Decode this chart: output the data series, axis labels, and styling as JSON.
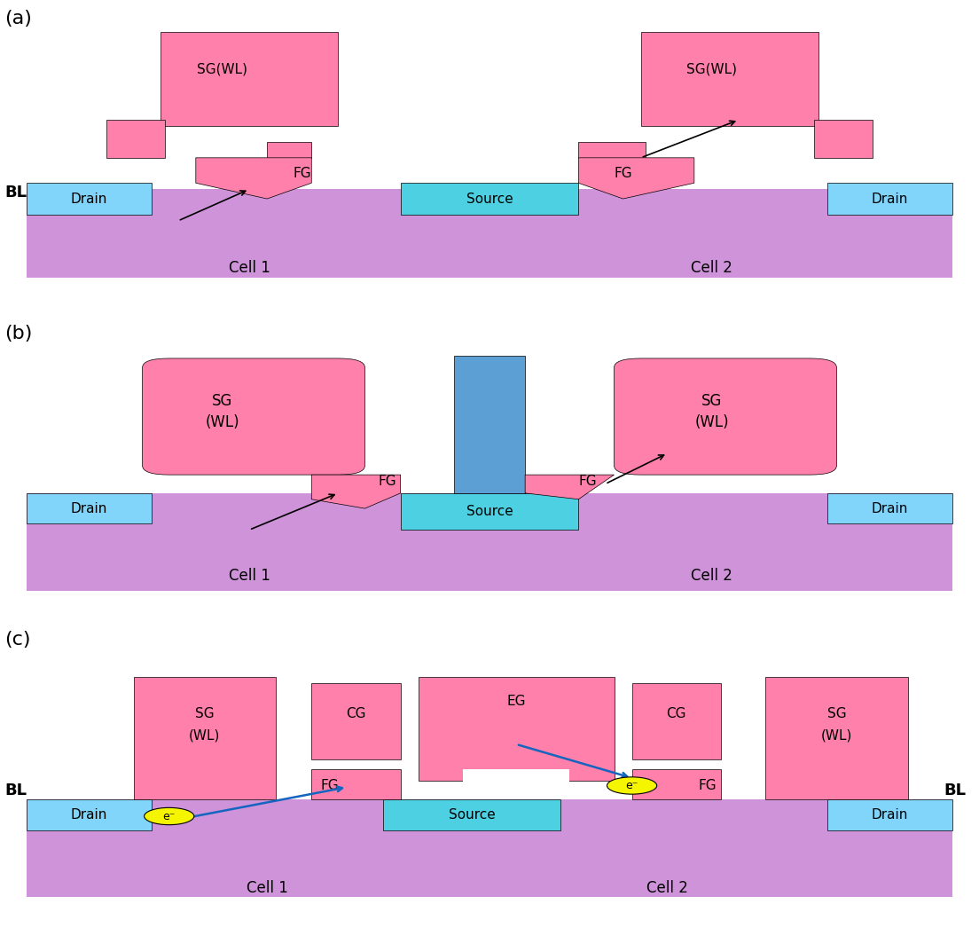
{
  "colors": {
    "pink": "#FF80AB",
    "pink_sg": "#F06292",
    "light_blue": "#81D4FA",
    "cyan_source": "#4DD0E1",
    "purple_substrate": "#CE93D8",
    "blue_pillar": "#5C9FD4",
    "dark_blue_arrow": "#1565C0",
    "yellow_electron": "#F5F500",
    "background": "white",
    "text": "black"
  },
  "panel_labels": [
    "(a)",
    "(b)",
    "(c)"
  ],
  "panel_label_fontsize": 16
}
